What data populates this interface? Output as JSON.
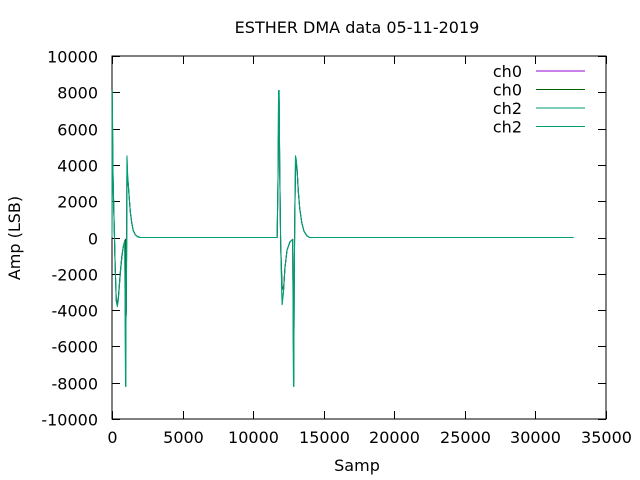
{
  "chart_data": {
    "type": "line",
    "title": "ESTHER  DMA data 05-11-2019",
    "xlabel": "Samp",
    "ylabel": "Amp (LSB)",
    "xlim": [
      0,
      35000
    ],
    "ylim": [
      -10000,
      10000
    ],
    "xticks": [
      0,
      5000,
      10000,
      15000,
      20000,
      25000,
      30000,
      35000
    ],
    "yticks": [
      -10000,
      -8000,
      -6000,
      -4000,
      -2000,
      0,
      2000,
      4000,
      6000,
      8000,
      10000
    ],
    "legend_position": "top-right",
    "grid": false,
    "series": [
      {
        "name": "ch0",
        "color": "#9400d3",
        "points": [
          [
            0,
            0
          ],
          [
            20,
            7600
          ],
          [
            60,
            3900
          ],
          [
            90,
            2600
          ],
          [
            150,
            800
          ],
          [
            220,
            -1500
          ],
          [
            300,
            -3400
          ],
          [
            380,
            -3600
          ],
          [
            450,
            -3300
          ],
          [
            520,
            -2600
          ],
          [
            600,
            -1800
          ],
          [
            700,
            -1000
          ],
          [
            800,
            -500
          ],
          [
            900,
            -200
          ],
          [
            960,
            -100
          ],
          [
            990,
            -2900
          ],
          [
            1010,
            -4200
          ],
          [
            1030,
            -1500
          ],
          [
            1060,
            3400
          ],
          [
            1110,
            3300
          ],
          [
            1160,
            2800
          ],
          [
            1230,
            2100
          ],
          [
            1300,
            1400
          ],
          [
            1400,
            800
          ],
          [
            1500,
            400
          ],
          [
            1650,
            150
          ],
          [
            1800,
            50
          ],
          [
            2000,
            0
          ],
          [
            5000,
            0
          ],
          [
            10000,
            0
          ],
          [
            11700,
            0
          ],
          [
            11760,
            3000
          ],
          [
            11800,
            6100
          ],
          [
            11840,
            7600
          ],
          [
            11880,
            4000
          ],
          [
            11950,
            -400
          ],
          [
            12050,
            -2700
          ],
          [
            12150,
            -2900
          ],
          [
            12250,
            -1700
          ],
          [
            12400,
            -700
          ],
          [
            12600,
            -250
          ],
          [
            12800,
            -100
          ],
          [
            12860,
            -6300
          ],
          [
            12880,
            -7800
          ],
          [
            12910,
            -2500
          ],
          [
            12950,
            1200
          ],
          [
            13000,
            3600
          ],
          [
            13050,
            4100
          ],
          [
            13110,
            3800
          ],
          [
            13200,
            2500
          ],
          [
            13300,
            1600
          ],
          [
            13450,
            800
          ],
          [
            13600,
            350
          ],
          [
            13800,
            100
          ],
          [
            14000,
            0
          ],
          [
            20000,
            0
          ],
          [
            25000,
            0
          ],
          [
            32700,
            0
          ]
        ]
      },
      {
        "name": "ch0",
        "color": "#006400",
        "points": [
          [
            0,
            0
          ],
          [
            20,
            7700
          ],
          [
            60,
            4000
          ],
          [
            90,
            2700
          ],
          [
            150,
            800
          ],
          [
            220,
            -1500
          ],
          [
            300,
            -3400
          ],
          [
            380,
            -3700
          ],
          [
            450,
            -3300
          ],
          [
            520,
            -2600
          ],
          [
            600,
            -1800
          ],
          [
            700,
            -1000
          ],
          [
            800,
            -500
          ],
          [
            900,
            -200
          ],
          [
            960,
            -100
          ],
          [
            990,
            -3000
          ],
          [
            1010,
            -4300
          ],
          [
            1030,
            -1500
          ],
          [
            1060,
            3400
          ],
          [
            1110,
            3300
          ],
          [
            1160,
            2800
          ],
          [
            1230,
            2100
          ],
          [
            1300,
            1400
          ],
          [
            1400,
            800
          ],
          [
            1500,
            400
          ],
          [
            1650,
            150
          ],
          [
            1800,
            50
          ],
          [
            2000,
            0
          ],
          [
            5000,
            0
          ],
          [
            10000,
            0
          ],
          [
            11700,
            0
          ],
          [
            11760,
            3000
          ],
          [
            11800,
            6200
          ],
          [
            11840,
            7600
          ],
          [
            11880,
            4000
          ],
          [
            11950,
            -400
          ],
          [
            12050,
            -2700
          ],
          [
            12150,
            -2900
          ],
          [
            12250,
            -1700
          ],
          [
            12400,
            -700
          ],
          [
            12600,
            -250
          ],
          [
            12800,
            -100
          ],
          [
            12860,
            -6300
          ],
          [
            12880,
            -7900
          ],
          [
            12910,
            -2500
          ],
          [
            12950,
            1200
          ],
          [
            13000,
            3600
          ],
          [
            13050,
            4100
          ],
          [
            13110,
            3800
          ],
          [
            13200,
            2500
          ],
          [
            13300,
            1600
          ],
          [
            13450,
            800
          ],
          [
            13600,
            350
          ],
          [
            13800,
            100
          ],
          [
            14000,
            0
          ],
          [
            20000,
            0
          ],
          [
            25000,
            0
          ],
          [
            32700,
            0
          ]
        ]
      },
      {
        "name": "ch2",
        "color": "#009e73",
        "points": [
          [
            0,
            0
          ],
          [
            20,
            8100
          ],
          [
            60,
            4200
          ],
          [
            90,
            2800
          ],
          [
            150,
            900
          ],
          [
            220,
            -1400
          ],
          [
            300,
            -3500
          ],
          [
            380,
            -3800
          ],
          [
            450,
            -3400
          ],
          [
            520,
            -2700
          ],
          [
            600,
            -1900
          ],
          [
            700,
            -1100
          ],
          [
            800,
            -500
          ],
          [
            900,
            -200
          ],
          [
            960,
            -8200
          ],
          [
            980,
            -8200
          ],
          [
            1000,
            -3000
          ],
          [
            1030,
            -1500
          ],
          [
            1060,
            4500
          ],
          [
            1110,
            3400
          ],
          [
            1160,
            2900
          ],
          [
            1230,
            2100
          ],
          [
            1300,
            1400
          ],
          [
            1400,
            800
          ],
          [
            1500,
            400
          ],
          [
            1650,
            150
          ],
          [
            1800,
            50
          ],
          [
            2000,
            0
          ],
          [
            5000,
            0
          ],
          [
            10000,
            0
          ],
          [
            11700,
            0
          ],
          [
            11760,
            3200
          ],
          [
            11800,
            8100
          ],
          [
            11840,
            8100
          ],
          [
            11880,
            4200
          ],
          [
            11950,
            -400
          ],
          [
            12050,
            -3700
          ],
          [
            12150,
            -3000
          ],
          [
            12250,
            -1700
          ],
          [
            12400,
            -700
          ],
          [
            12600,
            -250
          ],
          [
            12800,
            -100
          ],
          [
            12860,
            -8200
          ],
          [
            12880,
            -8200
          ],
          [
            12910,
            -2500
          ],
          [
            12950,
            1200
          ],
          [
            13000,
            4500
          ],
          [
            13050,
            4300
          ],
          [
            13110,
            3800
          ],
          [
            13200,
            2600
          ],
          [
            13300,
            1600
          ],
          [
            13450,
            800
          ],
          [
            13600,
            350
          ],
          [
            13800,
            100
          ],
          [
            14000,
            0
          ],
          [
            20000,
            0
          ],
          [
            25000,
            0
          ],
          [
            32700,
            0
          ]
        ]
      },
      {
        "name": "ch2",
        "color": "#009e73",
        "points": [
          [
            0,
            0
          ],
          [
            20,
            8100
          ],
          [
            60,
            4200
          ],
          [
            90,
            2800
          ],
          [
            150,
            900
          ],
          [
            220,
            -1400
          ],
          [
            300,
            -3500
          ],
          [
            380,
            -3800
          ],
          [
            450,
            -3400
          ],
          [
            520,
            -2700
          ],
          [
            600,
            -1900
          ],
          [
            700,
            -1100
          ],
          [
            800,
            -500
          ],
          [
            900,
            -200
          ],
          [
            960,
            -8200
          ],
          [
            980,
            -8200
          ],
          [
            1000,
            -3000
          ],
          [
            1030,
            -1500
          ],
          [
            1060,
            4500
          ],
          [
            1110,
            3400
          ],
          [
            1160,
            2900
          ],
          [
            1230,
            2100
          ],
          [
            1300,
            1400
          ],
          [
            1400,
            800
          ],
          [
            1500,
            400
          ],
          [
            1650,
            150
          ],
          [
            1800,
            50
          ],
          [
            2000,
            0
          ],
          [
            5000,
            0
          ],
          [
            10000,
            0
          ],
          [
            11700,
            0
          ],
          [
            11760,
            3200
          ],
          [
            11800,
            8100
          ],
          [
            11840,
            8100
          ],
          [
            11880,
            4200
          ],
          [
            11950,
            -400
          ],
          [
            12050,
            -3700
          ],
          [
            12150,
            -3000
          ],
          [
            12250,
            -1700
          ],
          [
            12400,
            -700
          ],
          [
            12600,
            -250
          ],
          [
            12800,
            -100
          ],
          [
            12860,
            -8200
          ],
          [
            12880,
            -8200
          ],
          [
            12910,
            -2500
          ],
          [
            12950,
            1200
          ],
          [
            13000,
            4500
          ],
          [
            13050,
            4300
          ],
          [
            13110,
            3800
          ],
          [
            13200,
            2600
          ],
          [
            13300,
            1600
          ],
          [
            13450,
            800
          ],
          [
            13600,
            350
          ],
          [
            13800,
            100
          ],
          [
            14000,
            0
          ],
          [
            20000,
            0
          ],
          [
            25000,
            0
          ],
          [
            32700,
            0
          ]
        ]
      }
    ]
  }
}
